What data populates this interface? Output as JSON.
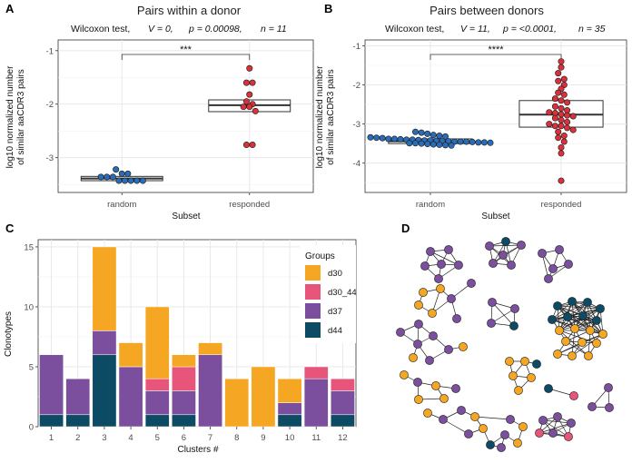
{
  "colors": {
    "d30": "#F5A623",
    "d30_44": "#E8557A",
    "d37": "#7B4F9D",
    "d44": "#0D4A63",
    "random_point": "#2A6CB5",
    "responded_point": "#D9313B"
  },
  "chart_data": [
    {
      "panel": "A",
      "type": "box",
      "title": "Pairs within a donor",
      "stat_text": {
        "test": "Wilcoxon test,",
        "V": "V =  0,",
        "p": "p  =  0.00098,",
        "n": "n  =  11"
      },
      "significance": "***",
      "xlabel": "Subset",
      "ylabel_lines": [
        "log10 normalized number",
        "of similar aaCDR3 pairs"
      ],
      "categories": [
        "random",
        "responded"
      ],
      "ylim": [
        -3.65,
        -0.8
      ],
      "yticks": [
        -3,
        -2,
        -1
      ],
      "ytick_labels": [
        "-3",
        "-2",
        "-1"
      ],
      "boxes": [
        {
          "q1": -3.43,
          "median": -3.39,
          "q3": -3.35,
          "lo": -3.43,
          "hi": -3.35
        },
        {
          "q1": -2.14,
          "median": -2.02,
          "q3": -1.92,
          "lo": -2.14,
          "hi": -1.92
        }
      ],
      "points": [
        [
          -3.22,
          -3.3,
          -3.3,
          -3.36,
          -3.36,
          -3.36,
          -3.43,
          -3.43,
          -3.43,
          -3.43,
          -3.43
        ],
        [
          -1.33,
          -1.6,
          -1.6,
          -1.82,
          -1.95,
          -2.0,
          -2.05,
          -2.05,
          -2.13,
          -2.76,
          -2.76
        ]
      ]
    },
    {
      "panel": "B",
      "type": "box",
      "title": "Pairs between donors",
      "stat_text": {
        "test": "Wilcoxon test,",
        "V": "V =  11,",
        "p": "p  =  <0.0001,",
        "n": "n  =  35"
      },
      "significance": "****",
      "xlabel": "Subset",
      "ylabel_lines": [
        "log10 normalized number",
        "of similar aaCDR3 pairs"
      ],
      "categories": [
        "random",
        "responded"
      ],
      "ylim": [
        -4.75,
        -0.85
      ],
      "yticks": [
        -4,
        -3,
        -2,
        -1
      ],
      "ytick_labels": [
        "-4",
        "-3",
        "-2",
        "-1"
      ],
      "boxes": [
        {
          "q1": -3.5,
          "median": -3.44,
          "q3": -3.38,
          "lo": -3.5,
          "hi": -3.38
        },
        {
          "q1": -3.08,
          "median": -2.76,
          "q3": -2.4,
          "lo": -3.08,
          "hi": -2.4
        }
      ],
      "points": [
        [
          -3.2,
          -3.22,
          -3.25,
          -3.28,
          -3.3,
          -3.32,
          -3.34,
          -3.35,
          -3.36,
          -3.38,
          -3.39,
          -3.4,
          -3.41,
          -3.42,
          -3.42,
          -3.43,
          -3.44,
          -3.44,
          -3.45,
          -3.45,
          -3.46,
          -3.47,
          -3.47,
          -3.48,
          -3.49,
          -3.49,
          -3.5,
          -3.51,
          -3.52,
          -3.53,
          -3.54,
          -3.55,
          -3.38,
          -3.4,
          -3.45
        ],
        [
          -1.4,
          -1.55,
          -1.7,
          -1.85,
          -1.9,
          -2.0,
          -2.1,
          -2.2,
          -2.25,
          -2.35,
          -2.4,
          -2.45,
          -2.55,
          -2.6,
          -2.65,
          -2.7,
          -2.72,
          -2.75,
          -2.78,
          -2.8,
          -2.85,
          -2.9,
          -2.95,
          -3.0,
          -3.05,
          -3.05,
          -3.1,
          -3.15,
          -3.2,
          -3.3,
          -3.35,
          -3.45,
          -3.6,
          -3.75,
          -4.45
        ]
      ]
    },
    {
      "panel": "C",
      "type": "bar",
      "stacked": true,
      "xlabel": "Clusters #",
      "ylabel": "Clonotypes",
      "categories": [
        "1",
        "2",
        "3",
        "4",
        "5",
        "6",
        "7",
        "8",
        "9",
        "10",
        "11",
        "12"
      ],
      "ylim": [
        0,
        15.6
      ],
      "yticks": [
        0,
        5,
        10,
        15
      ],
      "ytick_labels": [
        "0",
        "5",
        "10",
        "15"
      ],
      "legend_title": "Groups",
      "legend_position": "top-right",
      "series": [
        {
          "name": "d44",
          "values": [
            1,
            1,
            6,
            0,
            1,
            1,
            0,
            0,
            0,
            1,
            0,
            1
          ]
        },
        {
          "name": "d37",
          "values": [
            5,
            3,
            2,
            5,
            2,
            2,
            6,
            0,
            0,
            1,
            4,
            2
          ]
        },
        {
          "name": "d30_44",
          "values": [
            0,
            0,
            0,
            0,
            1,
            2,
            0,
            0,
            0,
            0,
            1,
            1
          ]
        },
        {
          "name": "d30",
          "values": [
            0,
            0,
            7,
            2,
            6,
            1,
            1,
            4,
            5,
            2,
            0,
            0
          ]
        }
      ]
    },
    {
      "panel": "D",
      "type": "network",
      "groups": [
        "d30",
        "d30_44",
        "d37",
        "d44"
      ]
    }
  ]
}
